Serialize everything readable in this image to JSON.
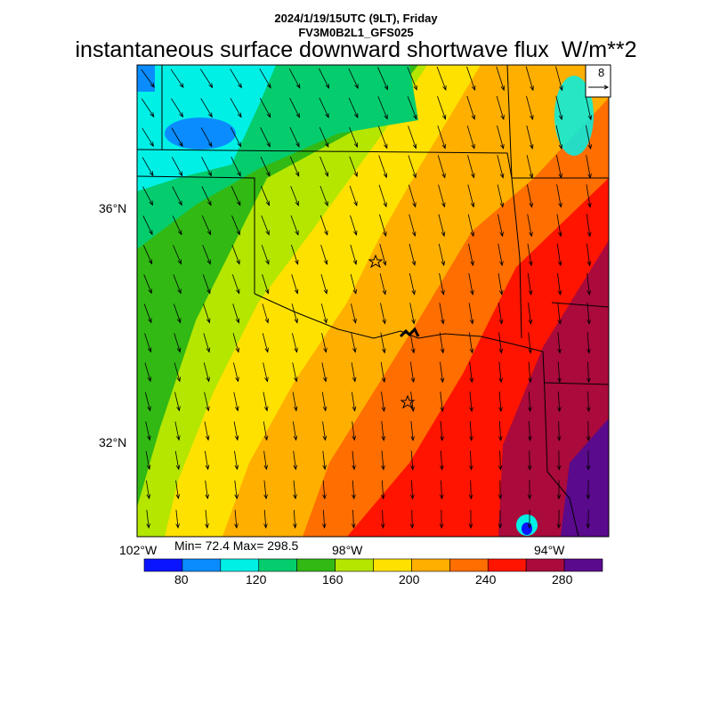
{
  "header": {
    "datetime": "2024/1/19/15UTC (9LT), Friday",
    "model": "FV3M0B2L1_GFS025",
    "variable": "instantaneous surface downward shortwave flux",
    "units": "W/m**2"
  },
  "reference_vector": {
    "label": "8"
  },
  "axes": {
    "lat_labels": [
      "36°N",
      "32°N"
    ],
    "lon_labels": [
      "102°W",
      "98°W",
      "94°W"
    ]
  },
  "stats": "Min= 72.4 Max= 298.5",
  "colorbar": {
    "levels": [
      60,
      80,
      100,
      120,
      140,
      160,
      180,
      200,
      220,
      240,
      260,
      280,
      300
    ],
    "tick_labels": [
      "80",
      "120",
      "160",
      "200",
      "240",
      "280"
    ],
    "colors": [
      "#0a14ff",
      "#0a8cff",
      "#00f0e6",
      "#05cd6e",
      "#32b914",
      "#b4e600",
      "#ffe100",
      "#ffaf00",
      "#ff6e00",
      "#ff1400",
      "#aa0a3c",
      "#5a0a8c"
    ]
  }
}
